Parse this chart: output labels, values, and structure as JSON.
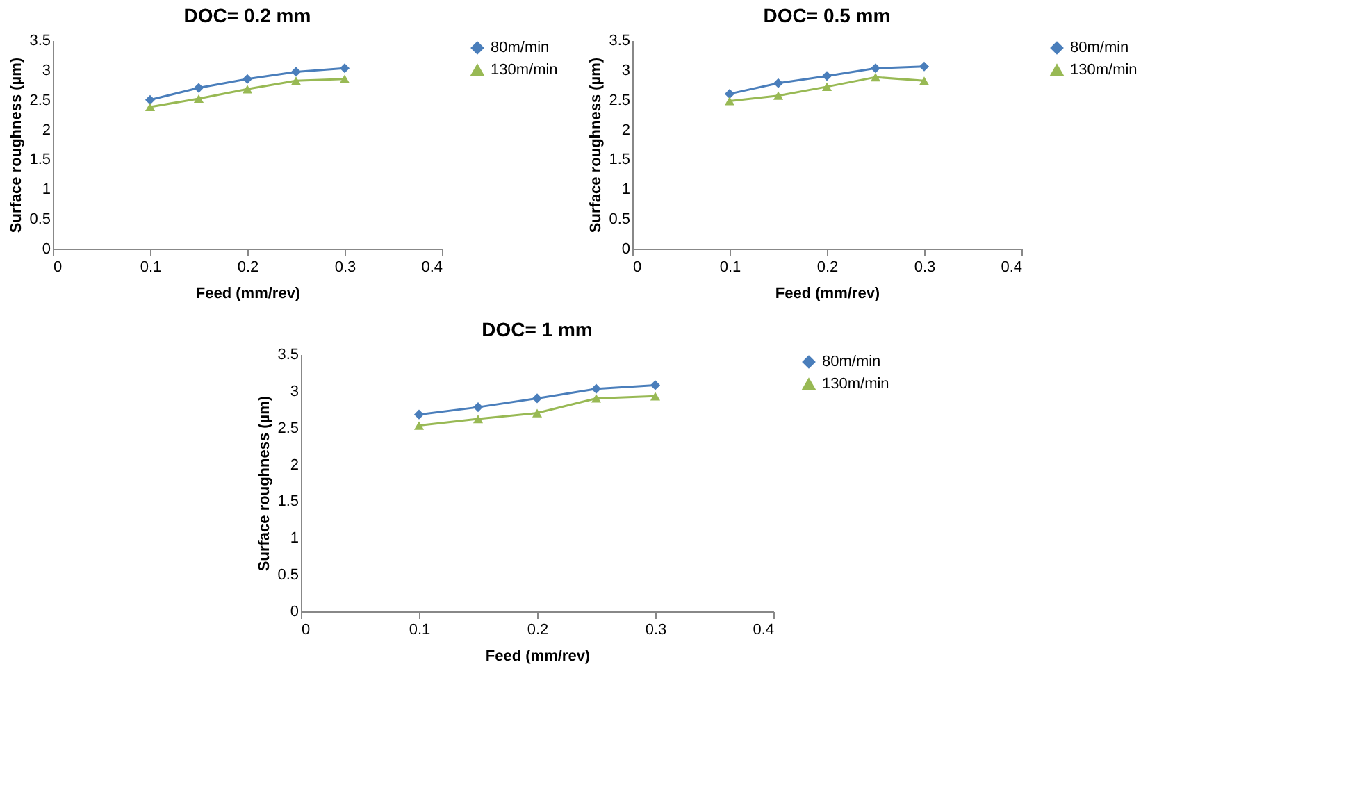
{
  "chart_data": [
    {
      "type": "line",
      "title": "DOC= 0.2 mm",
      "xlabel": "Feed (mm/rev)",
      "ylabel": "Surface roughness (µm)",
      "x": [
        0.1,
        0.15,
        0.2,
        0.25,
        0.3
      ],
      "xlim": [
        0,
        0.4
      ],
      "xticks": [
        0,
        0.1,
        0.2,
        0.3,
        0.4
      ],
      "ylim": [
        0,
        3.5
      ],
      "yticks": [
        0,
        0.5,
        1,
        1.5,
        2,
        2.5,
        3,
        3.5
      ],
      "grid": false,
      "legend": "right",
      "series": [
        {
          "name": "80m/min",
          "color": "#4a7ebb",
          "marker": "diamond",
          "values": [
            2.5,
            2.7,
            2.85,
            2.97,
            3.03
          ]
        },
        {
          "name": "130m/min",
          "color": "#98b954",
          "marker": "triangle",
          "values": [
            2.38,
            2.52,
            2.68,
            2.82,
            2.85
          ]
        }
      ]
    },
    {
      "type": "line",
      "title": "DOC= 0.5 mm",
      "xlabel": "Feed (mm/rev)",
      "ylabel": "Surface roughness (µm)",
      "x": [
        0.1,
        0.15,
        0.2,
        0.25,
        0.3
      ],
      "xlim": [
        0,
        0.4
      ],
      "xticks": [
        0,
        0.1,
        0.2,
        0.3,
        0.4
      ],
      "ylim": [
        0,
        3.5
      ],
      "yticks": [
        0,
        0.5,
        1,
        1.5,
        2,
        2.5,
        3,
        3.5
      ],
      "grid": false,
      "legend": "right",
      "series": [
        {
          "name": "80m/min",
          "color": "#4a7ebb",
          "marker": "diamond",
          "values": [
            2.6,
            2.78,
            2.9,
            3.03,
            3.06
          ]
        },
        {
          "name": "130m/min",
          "color": "#98b954",
          "marker": "triangle",
          "values": [
            2.48,
            2.57,
            2.72,
            2.88,
            2.82
          ]
        }
      ]
    },
    {
      "type": "line",
      "title": "DOC= 1 mm",
      "xlabel": "Feed (mm/rev)",
      "ylabel": "Surface roughness (µm)",
      "x": [
        0.1,
        0.15,
        0.2,
        0.25,
        0.3
      ],
      "xlim": [
        0,
        0.4
      ],
      "xticks": [
        0,
        0.1,
        0.2,
        0.3,
        0.4
      ],
      "ylim": [
        0,
        3.5
      ],
      "yticks": [
        0,
        0.5,
        1,
        1.5,
        2,
        2.5,
        3,
        3.5
      ],
      "grid": false,
      "legend": "right",
      "series": [
        {
          "name": "80m/min",
          "color": "#4a7ebb",
          "marker": "diamond",
          "values": [
            2.68,
            2.78,
            2.9,
            3.03,
            3.08
          ]
        },
        {
          "name": "130m/min",
          "color": "#98b954",
          "marker": "triangle",
          "values": [
            2.53,
            2.62,
            2.7,
            2.9,
            2.93
          ]
        }
      ]
    }
  ]
}
